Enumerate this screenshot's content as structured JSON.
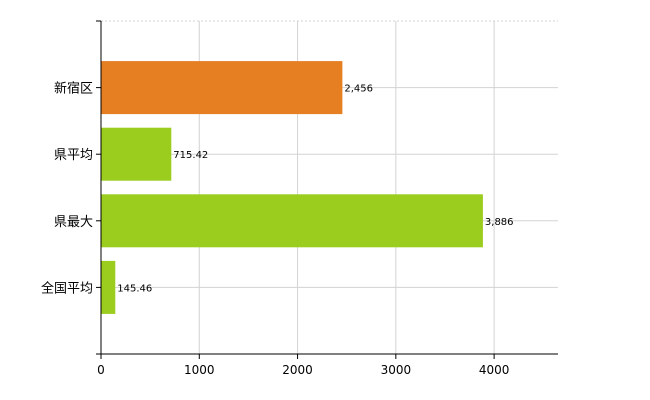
{
  "chart_data": {
    "type": "bar",
    "orientation": "horizontal",
    "categories": [
      "新宿区",
      "県平均",
      "県最大",
      "全国平均"
    ],
    "values": [
      2456,
      715.42,
      3886,
      145.46
    ],
    "value_labels": [
      "2,456",
      "715.42",
      "3,886",
      "145.46"
    ],
    "bar_colors": [
      "#e67e22",
      "#9acd1e",
      "#9acd1e",
      "#9acd1e"
    ],
    "xlim": [
      0,
      4650
    ],
    "xticks": [
      0,
      1000,
      2000,
      3000,
      4000
    ],
    "xtick_labels": [
      "0",
      "1000",
      "2000",
      "3000",
      "4000"
    ],
    "grid": true,
    "legend": "none",
    "title": "",
    "xlabel": "",
    "ylabel": ""
  }
}
